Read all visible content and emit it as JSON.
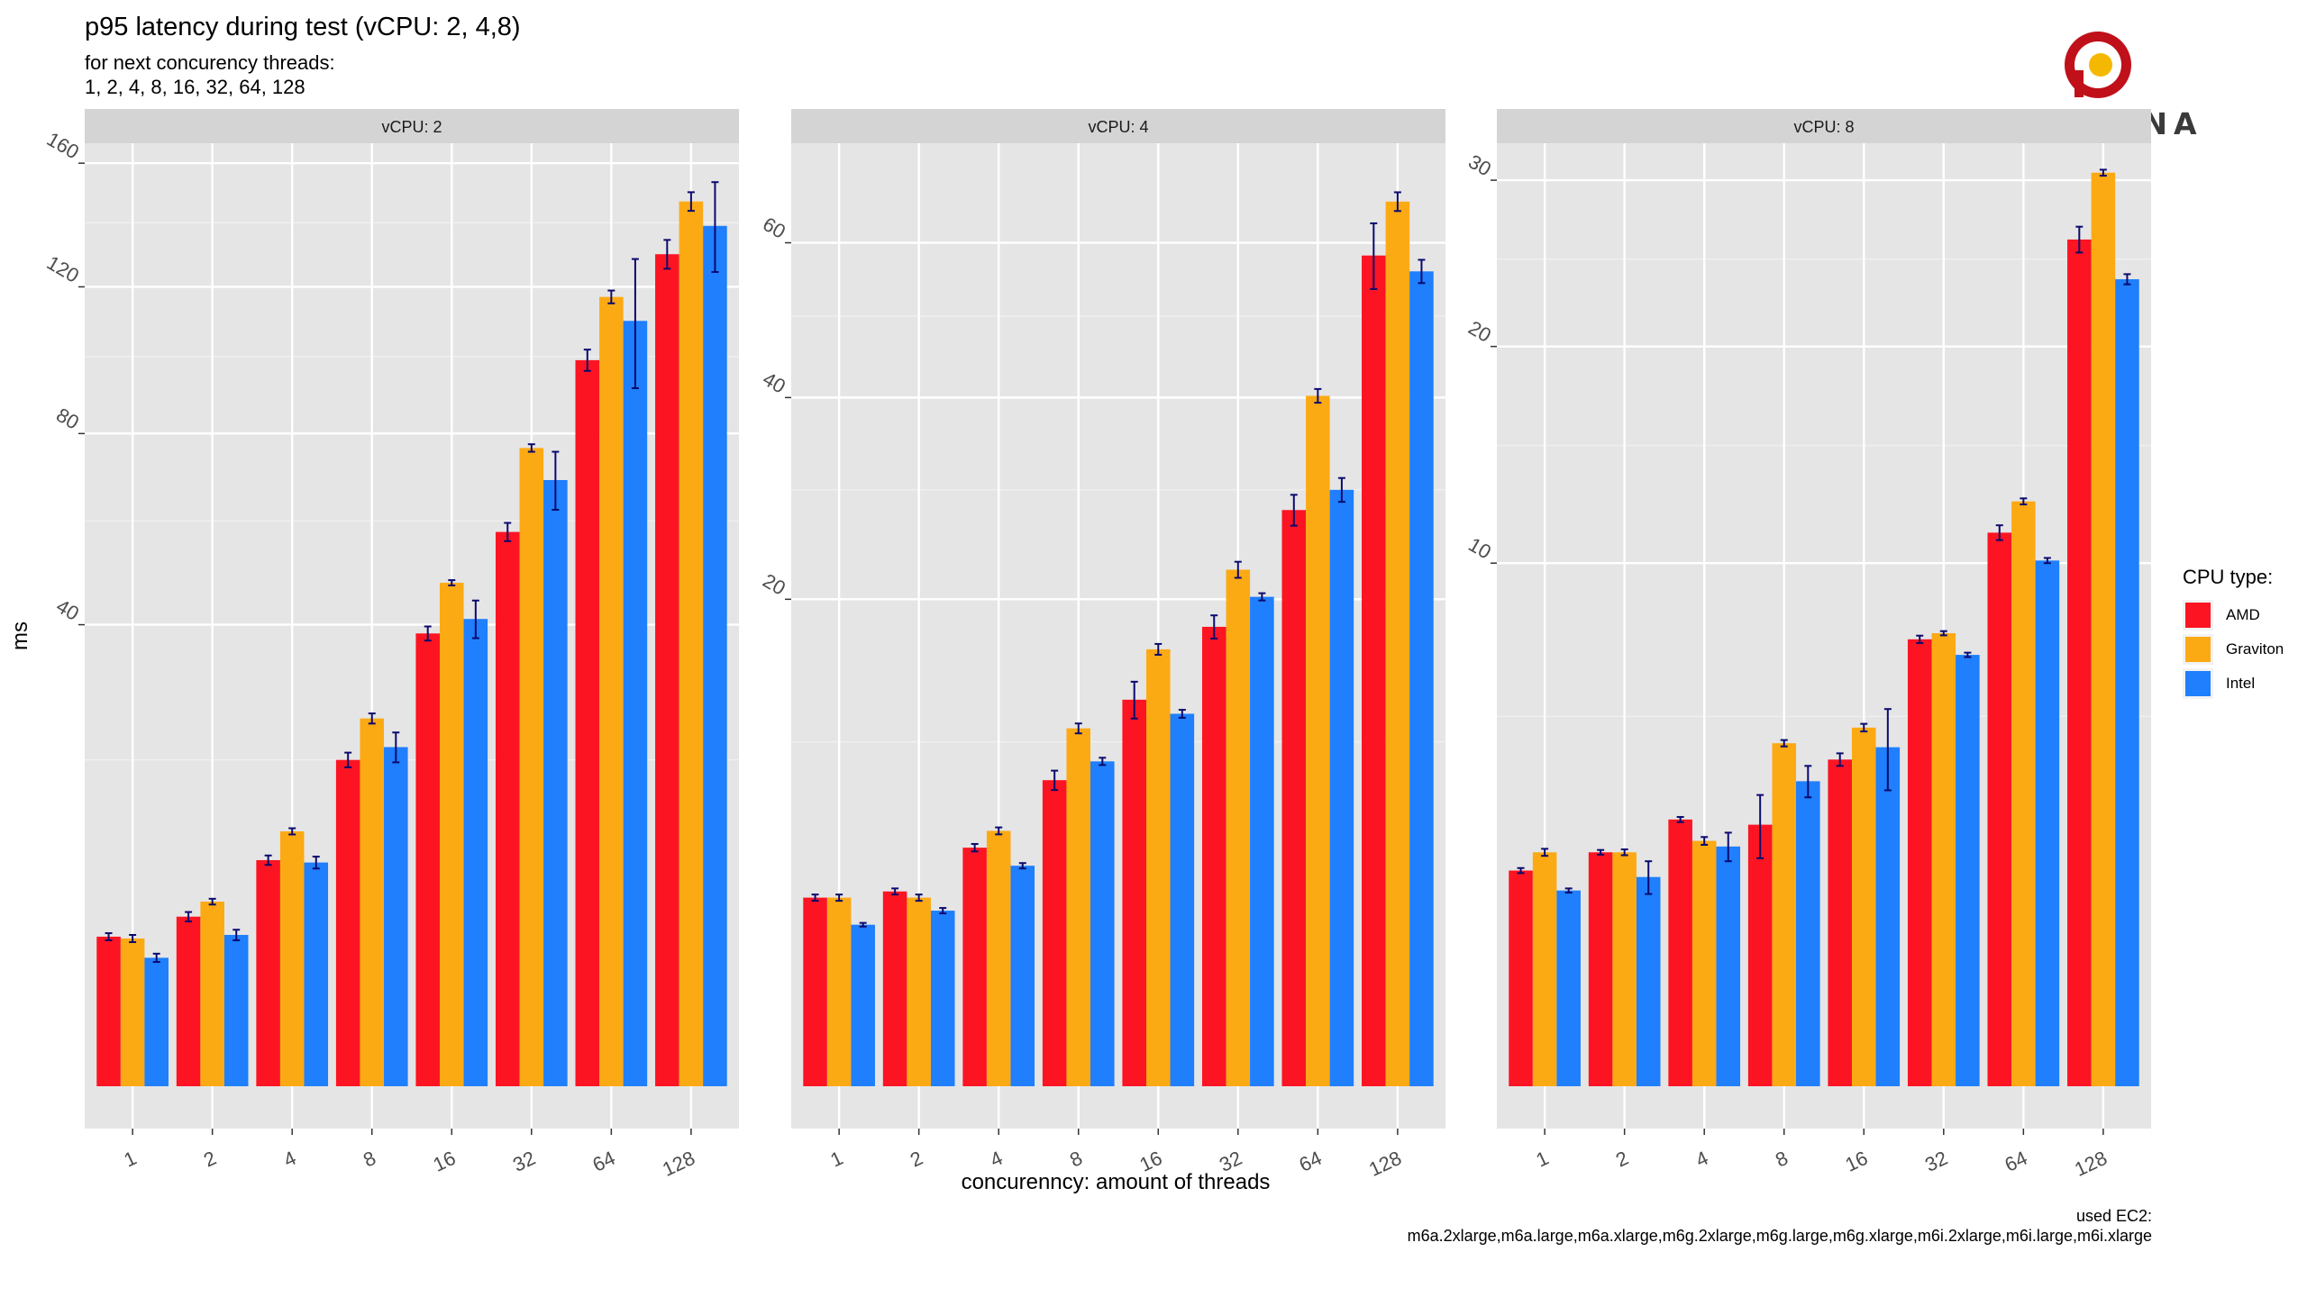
{
  "title": "p95 latency during test (vCPU: 2, 4,8)",
  "subtitle_lines": [
    "for next concurency threads:",
    "1, 2, 4, 8, 16, 32, 64, 128"
  ],
  "caption_lines": [
    "used EC2:",
    "m6a.2xlarge,m6a.large,m6a.xlarge,m6g.2xlarge,m6g.large,m6g.xlarge,m6i.2xlarge,m6i.large,m6i.xlarge"
  ],
  "logo_text": "PERCONA",
  "colors": {
    "AMD": "#fc1423",
    "Graviton": "#fcaa14",
    "Intel": "#1f7ffc",
    "panel_bg": "#e5e5e5",
    "strip_bg": "#d4d4d4",
    "errorbar": "#0a0a6e"
  },
  "legend": {
    "title": "CPU type:",
    "items": [
      "AMD",
      "Graviton",
      "Intel"
    ]
  },
  "chart_data": {
    "type": "bar",
    "scale": "sqrt",
    "xlabel": "concurenncу: amount of threads",
    "ylabel": "ms",
    "categories": [
      "1",
      "2",
      "4",
      "8",
      "16",
      "32",
      "64",
      "128"
    ],
    "panels": [
      {
        "strip": "vCPU: 2",
        "ylim": [
          0,
          167
        ],
        "yticks": [
          40,
          80,
          120,
          160
        ],
        "series": [
          {
            "name": "AMD",
            "values": [
              4.2,
              5.4,
              9.6,
              20.0,
              38.5,
              57.7,
              99.0,
              130.0
            ],
            "err": [
              0.2,
              0.3,
              0.4,
              0.9,
              1.2,
              1.9,
              2.9,
              4.5
            ]
          },
          {
            "name": "Graviton",
            "values": [
              4.1,
              6.4,
              12.2,
              25.4,
              47.6,
              76.5,
              117.0,
              147.0
            ],
            "err": [
              0.2,
              0.2,
              0.3,
              0.7,
              0.5,
              0.9,
              1.9,
              3.1
            ]
          },
          {
            "name": "Intel",
            "values": [
              3.1,
              4.3,
              9.4,
              21.6,
              41.0,
              69.0,
              110.0,
              139.0
            ],
            "err": [
              0.2,
              0.3,
              0.5,
              1.9,
              3.3,
              6.6,
              18.5,
              14.5
            ]
          }
        ]
      },
      {
        "strip": "vCPU: 4",
        "ylim": [
          0,
          75
        ],
        "yticks": [
          20,
          40,
          60
        ],
        "series": [
          {
            "name": "AMD",
            "values": [
              3.0,
              3.2,
              4.8,
              7.9,
              12.6,
              17.8,
              28.0,
              58.2
            ],
            "err": [
              0.1,
              0.1,
              0.15,
              0.5,
              1.2,
              0.9,
              1.5,
              4.6
            ]
          },
          {
            "name": "Graviton",
            "values": [
              3.0,
              3.0,
              5.5,
              10.8,
              16.1,
              22.5,
              40.2,
              66.0
            ],
            "err": [
              0.1,
              0.1,
              0.15,
              0.3,
              0.4,
              0.7,
              0.8,
              1.4
            ]
          },
          {
            "name": "Intel",
            "values": [
              2.2,
              2.6,
              4.1,
              8.9,
              11.7,
              20.2,
              30.0,
              56.0
            ],
            "err": [
              0.05,
              0.08,
              0.1,
              0.2,
              0.25,
              0.3,
              1.2,
              1.6
            ]
          }
        ]
      },
      {
        "strip": "vCPU: 8",
        "ylim": [
          0,
          32.5
        ],
        "yticks": [
          10,
          20,
          30
        ],
        "series": [
          {
            "name": "AMD",
            "values": [
              1.7,
              2.0,
              2.6,
              2.5,
              3.9,
              7.3,
              11.2,
              26.2
            ],
            "err": [
              0.04,
              0.04,
              0.05,
              0.6,
              0.15,
              0.12,
              0.3,
              0.8
            ]
          },
          {
            "name": "Graviton",
            "values": [
              2.0,
              2.0,
              2.2,
              4.3,
              4.7,
              7.5,
              12.5,
              30.5
            ],
            "err": [
              0.06,
              0.05,
              0.07,
              0.08,
              0.1,
              0.07,
              0.13,
              0.2
            ]
          },
          {
            "name": "Intel",
            "values": [
              1.4,
              1.6,
              2.1,
              3.4,
              4.2,
              6.8,
              10.1,
              23.8
            ],
            "err": [
              0.03,
              0.25,
              0.25,
              0.35,
              1.0,
              0.07,
              0.1,
              0.3
            ]
          }
        ]
      }
    ]
  }
}
